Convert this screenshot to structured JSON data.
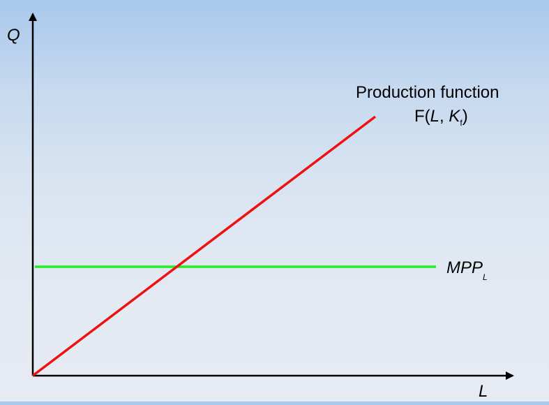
{
  "diagram": {
    "y_axis_label": "Q",
    "x_axis_label": "L",
    "production_function": {
      "line1": "Production function",
      "prefix": "F(",
      "var_l": "L",
      "comma": ", ",
      "var_k": "K",
      "sub_f": "f",
      "suffix": ")",
      "color": "#ee1111"
    },
    "mpp": {
      "main": "MPP",
      "sub": "L",
      "color": "#22ee22"
    },
    "axis_color": "#000000"
  }
}
